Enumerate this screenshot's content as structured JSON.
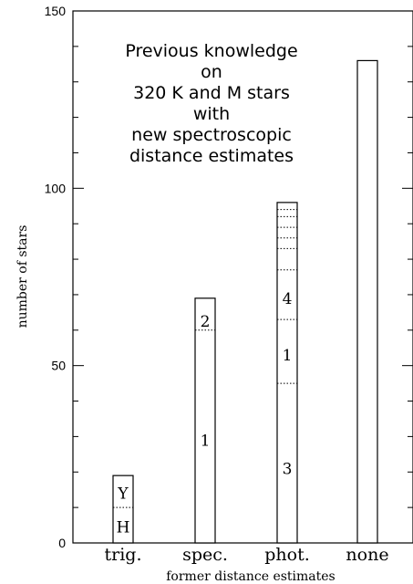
{
  "chart_data": {
    "type": "bar",
    "title_lines": [
      "Previous knowledge",
      "on",
      "320 K and M stars",
      "with",
      "new spectroscopic",
      "distance estimates"
    ],
    "xlabel": "former distance estimates",
    "ylabel": "number of stars",
    "ylim": [
      0,
      150
    ],
    "yticks": [
      0,
      50,
      100,
      150
    ],
    "ytick_labels": [
      "0",
      "50",
      "100",
      "150"
    ],
    "categories": [
      "trig.",
      "spec.",
      "phot.",
      "none"
    ],
    "values": [
      19,
      69,
      96,
      136
    ],
    "segment_boundaries": [
      [
        10
      ],
      [
        60
      ],
      [
        45,
        63,
        77,
        83,
        86,
        89,
        92,
        94
      ],
      []
    ],
    "segment_labels": [
      [
        {
          "text": "H",
          "y": 4.5
        },
        {
          "text": "Y",
          "y": 14
        }
      ],
      [
        {
          "text": "1",
          "y": 29
        },
        {
          "text": "2",
          "y": 62.5
        }
      ],
      [
        {
          "text": "3",
          "y": 21
        },
        {
          "text": "1",
          "y": 53
        },
        {
          "text": "4",
          "y": 69
        }
      ],
      []
    ]
  }
}
